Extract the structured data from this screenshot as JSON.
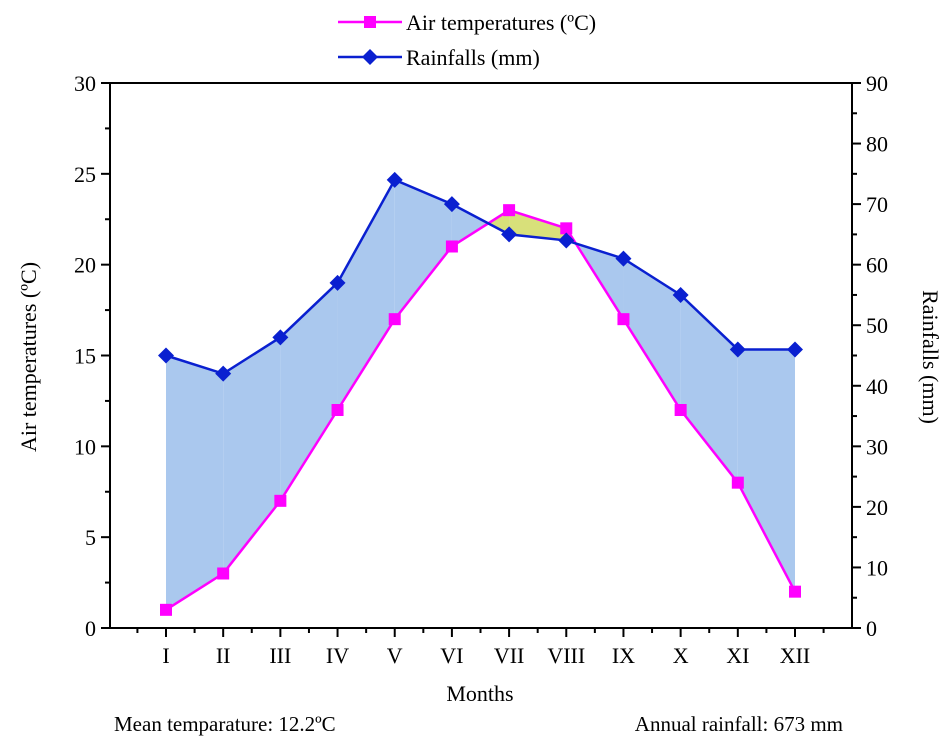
{
  "chart_data": {
    "type": "line",
    "xlabel": "Months",
    "ylabel_left": "Air temperatures (ºC)",
    "ylabel_right": "Rainfalls (mm)",
    "categories": [
      "I",
      "II",
      "III",
      "IV",
      "V",
      "VI",
      "VII",
      "VIII",
      "IX",
      "X",
      "XI",
      "XII"
    ],
    "ylim_left": [
      0,
      30
    ],
    "ylim_right": [
      0,
      90
    ],
    "yticks_left": [
      0,
      5,
      10,
      15,
      20,
      25,
      30
    ],
    "yticks_right": [
      0,
      10,
      20,
      30,
      40,
      50,
      60,
      70,
      80,
      90
    ],
    "series": [
      {
        "name": "Air temperatures (ºC)",
        "axis": "left",
        "color": "#ff00ff",
        "marker": "square",
        "values": [
          1,
          3,
          7,
          12,
          17,
          21,
          23,
          22,
          17,
          12,
          8,
          2
        ]
      },
      {
        "name": "Rainfalls (mm)",
        "axis": "right",
        "color": "#0a20d0",
        "marker": "diamond",
        "values": [
          45,
          42,
          48,
          57,
          74,
          70,
          65,
          64,
          61,
          55,
          46,
          46
        ]
      }
    ],
    "fill_humid_color": "#aac8ee",
    "fill_arid_color": "#d8e07a",
    "legend_position": "top-center",
    "grid": false
  },
  "notes": {
    "mean_temperature": "Mean temparature: 12.2ºC",
    "annual_rainfall": "Annual rainfall: 673 mm"
  }
}
